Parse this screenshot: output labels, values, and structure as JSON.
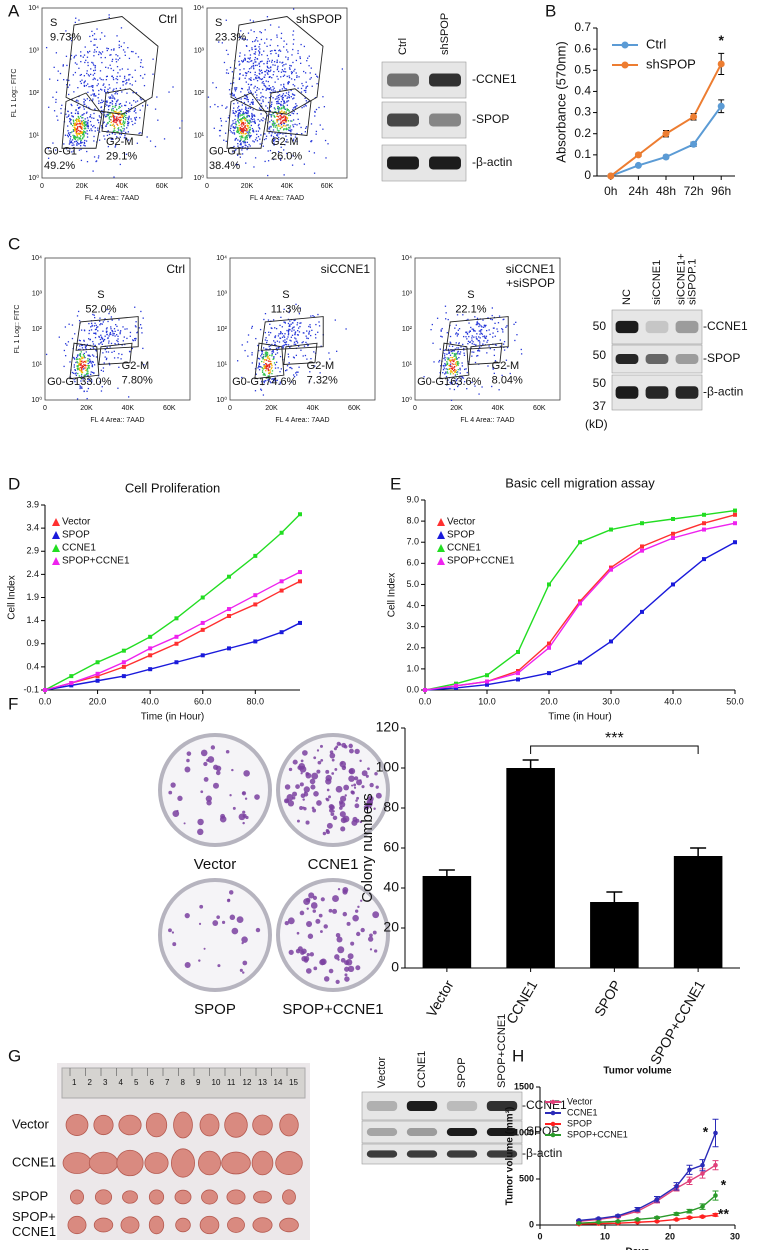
{
  "panel_labels": [
    "A",
    "B",
    "C",
    "D",
    "E",
    "F",
    "G",
    "H"
  ],
  "flow_axes": {
    "ylabel": "FL 1 Log:: FITC",
    "xlabel": "FL 4 Area:: 7AAD",
    "xticks": [
      "0",
      "20K",
      "40K",
      "60K"
    ],
    "yticks": [
      "10⁰",
      "10¹",
      "10²",
      "10³",
      "10⁴"
    ]
  },
  "flow_panels": [
    {
      "label": [
        "Ctrl"
      ],
      "gates": [
        {
          "name": "S",
          "pct": "9.73%"
        },
        {
          "name": "G0-G1",
          "pct": "49.2%"
        },
        {
          "name": "G2-M",
          "pct": "29.1%"
        }
      ]
    },
    {
      "label": [
        "shSPOP"
      ],
      "gates": [
        {
          "name": "S",
          "pct": "23.3%"
        },
        {
          "name": "G0-G1",
          "pct": "38.4%"
        },
        {
          "name": "G2-M",
          "pct": "26.0%"
        }
      ]
    },
    {
      "label": [
        "Ctrl"
      ],
      "gates": [
        {
          "name": "S",
          "pct": "52.0%"
        },
        {
          "name": "G0-G1",
          "pct": "33.0%"
        },
        {
          "name": "G2-M",
          "pct": "7.80%"
        }
      ]
    },
    {
      "label": [
        "siCCNE1"
      ],
      "gates": [
        {
          "name": "S",
          "pct": "11.3%"
        },
        {
          "name": "G0-G1",
          "pct": "74.6%"
        },
        {
          "name": "G2-M",
          "pct": "7.32%"
        }
      ]
    },
    {
      "label": [
        "siCCNE1",
        "+siSPOP"
      ],
      "gates": [
        {
          "name": "S",
          "pct": "22.1%"
        },
        {
          "name": "G0-G1",
          "pct": "63.6%"
        },
        {
          "name": "G2-M",
          "pct": "8.04%"
        }
      ]
    }
  ],
  "blots": [
    {
      "columns": [
        [
          "Ctrl"
        ],
        [
          "shSPOP"
        ]
      ],
      "bands": [
        "-CCNE1",
        "-SPOP",
        "-β-actin"
      ]
    },
    {
      "columns": [
        [
          "NC"
        ],
        [
          "siCCNE1"
        ],
        [
          "siCCNE1+",
          "siSPOP.1"
        ]
      ],
      "bands": [
        "-CCNE1",
        "-SPOP",
        "-β-actin"
      ],
      "markers": [
        "50",
        "50",
        "50",
        "37"
      ],
      "unit": "(kD)"
    },
    {
      "columns": [
        [
          "Vector"
        ],
        [
          "CCNE1"
        ],
        [
          "SPOP"
        ],
        [
          "SPOP+CCNE1"
        ]
      ],
      "bands": [
        "-CCNE1",
        "-SPOP",
        "-β-actin"
      ]
    }
  ],
  "colony_dishes": [
    "Vector",
    "CCNE1",
    "SPOP",
    "SPOP+CCNE1"
  ],
  "tumor_rows": [
    [
      "Vector"
    ],
    [
      "CCNE1"
    ],
    [
      "SPOP"
    ],
    [
      "SPOP+",
      "CCNE1"
    ]
  ],
  "ruler": [
    "1",
    "2",
    "3",
    "4",
    "5",
    "6",
    "7",
    "8",
    "9",
    "10",
    "11",
    "12",
    "13",
    "14",
    "15"
  ],
  "chart_data": [
    {
      "type": "line",
      "categories": [
        "0h",
        "24h",
        "48h",
        "72h",
        "96h"
      ],
      "ylabel": "Absorbance (570nm)",
      "ylim": [
        0,
        0.7
      ],
      "yticks": [
        0,
        0.1,
        0.2,
        0.3,
        0.4,
        0.5,
        0.6,
        0.7
      ],
      "legend": "upper left",
      "series": [
        {
          "name": "Ctrl",
          "color": "#5b9bd5",
          "values": [
            0,
            0.05,
            0.09,
            0.15,
            0.33
          ],
          "errors": [
            0,
            0.005,
            0.008,
            0.01,
            0.03
          ]
        },
        {
          "name": "shSPOP",
          "color": "#ed7d31",
          "values": [
            0,
            0.1,
            0.2,
            0.28,
            0.53
          ],
          "errors": [
            0,
            0.008,
            0.015,
            0.015,
            0.05
          ]
        }
      ],
      "annotations": [
        "*"
      ]
    },
    {
      "type": "line",
      "title": "Cell Proliferation",
      "xlabel": "Time (in Hour)",
      "ylabel": "Cell Index",
      "x": [
        0,
        10,
        20,
        30,
        40,
        50,
        60,
        70,
        80,
        90,
        97
      ],
      "xlim": [
        0,
        97
      ],
      "xticks": [
        {
          "value": 0,
          "label": "0.0"
        },
        {
          "value": 20,
          "label": "20.0"
        },
        {
          "value": 40,
          "label": "40.0"
        },
        {
          "value": 60,
          "label": "60.0"
        },
        {
          "value": 80,
          "label": "80.0"
        }
      ],
      "ylim": [
        -0.1,
        3.9
      ],
      "yticks": [
        -0.1,
        0.4,
        0.9,
        1.4,
        1.9,
        2.4,
        2.9,
        3.4,
        3.9
      ],
      "legend": "upper left",
      "series": [
        {
          "name": "Vector",
          "color": "#ff3030",
          "values": [
            -0.1,
            0.05,
            0.2,
            0.4,
            0.65,
            0.9,
            1.2,
            1.5,
            1.75,
            2.05,
            2.25
          ]
        },
        {
          "name": "SPOP",
          "color": "#1a1adb",
          "values": [
            -0.1,
            0,
            0.1,
            0.2,
            0.35,
            0.5,
            0.65,
            0.8,
            0.95,
            1.15,
            1.35
          ]
        },
        {
          "name": "CCNE1",
          "color": "#22dd22",
          "values": [
            -0.1,
            0.2,
            0.5,
            0.75,
            1.05,
            1.45,
            1.9,
            2.35,
            2.8,
            3.3,
            3.7
          ]
        },
        {
          "name": "SPOP+CCNE1",
          "color": "#ee22ee",
          "values": [
            -0.1,
            0.05,
            0.25,
            0.5,
            0.8,
            1.05,
            1.35,
            1.65,
            1.95,
            2.25,
            2.45
          ]
        }
      ]
    },
    {
      "type": "line",
      "title": "Basic cell migration assay",
      "xlabel": "Time (in Hour)",
      "ylabel": "Cell Index",
      "x": [
        0,
        5,
        10,
        15,
        20,
        25,
        30,
        35,
        40,
        45,
        50
      ],
      "xlim": [
        0,
        50
      ],
      "xticks": [
        {
          "value": 0,
          "label": "0.0"
        },
        {
          "value": 10,
          "label": "10.0"
        },
        {
          "value": 20,
          "label": "20.0"
        },
        {
          "value": 30,
          "label": "30.0"
        },
        {
          "value": 40,
          "label": "40.0"
        },
        {
          "value": 50,
          "label": "50.0"
        }
      ],
      "ylim": [
        0,
        9
      ],
      "yticks": [
        {
          "value": 0,
          "label": "0.0"
        },
        {
          "value": 1,
          "label": "1.0"
        },
        {
          "value": 2,
          "label": "2.0"
        },
        {
          "value": 3,
          "label": "3.0"
        },
        {
          "value": 4,
          "label": "4.0"
        },
        {
          "value": 5,
          "label": "5.0"
        },
        {
          "value": 6,
          "label": "6.0"
        },
        {
          "value": 7,
          "label": "7.0"
        },
        {
          "value": 8,
          "label": "8.0"
        },
        {
          "value": 9,
          "label": "9.0"
        }
      ],
      "legend": "upper left",
      "series": [
        {
          "name": "Vector",
          "color": "#ff3030",
          "values": [
            0,
            0.2,
            0.4,
            0.9,
            2.2,
            4.2,
            5.8,
            6.8,
            7.4,
            7.9,
            8.3
          ]
        },
        {
          "name": "SPOP",
          "color": "#1a1adb",
          "values": [
            0,
            0.1,
            0.25,
            0.5,
            0.8,
            1.3,
            2.3,
            3.7,
            5,
            6.2,
            7
          ]
        },
        {
          "name": "CCNE1",
          "color": "#22dd22",
          "values": [
            0,
            0.3,
            0.7,
            1.8,
            5,
            7,
            7.6,
            7.9,
            8.1,
            8.3,
            8.5
          ]
        },
        {
          "name": "SPOP+CCNE1",
          "color": "#ee22ee",
          "values": [
            0,
            0.2,
            0.4,
            0.8,
            2,
            4.1,
            5.7,
            6.6,
            7.2,
            7.6,
            7.9
          ]
        }
      ]
    },
    {
      "type": "bar",
      "categories": [
        "Vector",
        "CCNE1",
        "SPOP",
        "SPOP+CCNE1"
      ],
      "values": [
        46,
        100,
        33,
        56
      ],
      "errors": [
        3,
        4,
        5,
        4
      ],
      "color": "#000000",
      "ylabel": "Colony numbers",
      "ylim": [
        0,
        120
      ],
      "yticks": [
        0,
        20,
        40,
        60,
        80,
        100,
        120
      ],
      "annotations": [
        "***"
      ]
    },
    {
      "type": "line",
      "title": "Tumor volume",
      "xlabel": "Days",
      "ylabel": "Tumor volume (mm³)",
      "x": [
        6,
        9,
        12,
        15,
        18,
        21,
        23,
        25,
        27
      ],
      "xlim": [
        0,
        30
      ],
      "xticks": [
        0,
        10,
        20,
        30
      ],
      "ylim": [
        0,
        1500
      ],
      "yticks": [
        0,
        500,
        1000,
        1500
      ],
      "legend": "upper left",
      "series": [
        {
          "name": "Vector",
          "color": "#e0407a",
          "values": [
            40,
            60,
            90,
            150,
            260,
            400,
            480,
            560,
            650
          ],
          "errors": [
            5,
            8,
            10,
            15,
            20,
            30,
            40,
            50,
            50
          ]
        },
        {
          "name": "CCNE1",
          "color": "#2b2bb8",
          "values": [
            50,
            70,
            100,
            170,
            280,
            420,
            600,
            650,
            1000
          ],
          "errors": [
            5,
            8,
            10,
            20,
            30,
            40,
            50,
            60,
            150
          ]
        },
        {
          "name": "SPOP",
          "color": "#ff2020",
          "values": [
            10,
            15,
            20,
            30,
            40,
            60,
            80,
            90,
            110
          ],
          "errors": [
            3,
            3,
            5,
            5,
            5,
            8,
            10,
            10,
            15
          ]
        },
        {
          "name": "SPOP+CCNE1",
          "color": "#2a9a2a",
          "values": [
            20,
            30,
            40,
            60,
            80,
            120,
            150,
            200,
            320
          ],
          "errors": [
            3,
            5,
            5,
            8,
            10,
            15,
            20,
            30,
            50
          ]
        }
      ],
      "annotations": [
        "*",
        "*",
        "**"
      ]
    }
  ]
}
